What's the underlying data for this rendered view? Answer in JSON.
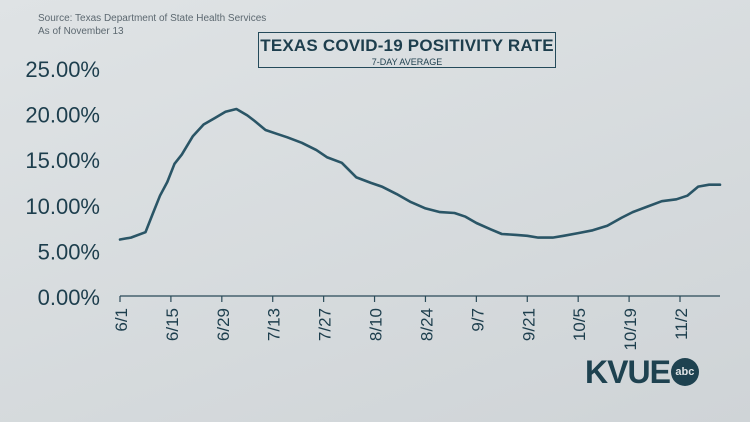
{
  "source": {
    "line1": "Source: Texas Department of State Health Services",
    "line2": "As of November 13"
  },
  "logo": {
    "text": "KVUE",
    "badge": "abc"
  },
  "colors": {
    "line": "#2a5566",
    "text": "#1d3e4d",
    "axis": "#2a4a58"
  },
  "chart_data": {
    "type": "line",
    "title": "TEXAS COVID-19 POSITIVITY RATE",
    "subtitle": "7-DAY AVERAGE",
    "xlabel": "",
    "ylabel": "",
    "ylim": [
      0,
      25
    ],
    "yticks": [
      0,
      5,
      10,
      15,
      20,
      25
    ],
    "ytick_labels": [
      "0.00%",
      "5.00%",
      "10.00%",
      "15.00%",
      "20.00%",
      "25.00%"
    ],
    "xlim": [
      "2020-06-01",
      "2020-11-13"
    ],
    "xtick_dates": [
      "2020-06-01",
      "2020-06-15",
      "2020-06-29",
      "2020-07-13",
      "2020-07-27",
      "2020-08-10",
      "2020-08-24",
      "2020-09-07",
      "2020-09-21",
      "2020-10-05",
      "2020-10-19",
      "2020-11-02"
    ],
    "xtick_labels": [
      "6/1",
      "6/15",
      "6/29",
      "7/13",
      "7/27",
      "8/10",
      "8/24",
      "9/7",
      "9/21",
      "10/5",
      "10/19",
      "11/2"
    ],
    "grid": false,
    "series": [
      {
        "x": [
          "2020-06-01",
          "2020-06-04",
          "2020-06-08",
          "2020-06-10",
          "2020-06-12",
          "2020-06-14",
          "2020-06-16",
          "2020-06-18",
          "2020-06-21",
          "2020-06-24",
          "2020-06-27",
          "2020-06-30",
          "2020-07-03",
          "2020-07-06",
          "2020-07-08",
          "2020-07-11",
          "2020-07-14",
          "2020-07-17",
          "2020-07-21",
          "2020-07-25",
          "2020-07-28",
          "2020-08-01",
          "2020-08-05",
          "2020-08-09",
          "2020-08-12",
          "2020-08-16",
          "2020-08-20",
          "2020-08-24",
          "2020-08-28",
          "2020-09-01",
          "2020-09-04",
          "2020-09-07",
          "2020-09-11",
          "2020-09-14",
          "2020-09-18",
          "2020-09-21",
          "2020-09-24",
          "2020-09-28",
          "2020-10-01",
          "2020-10-05",
          "2020-10-09",
          "2020-10-13",
          "2020-10-17",
          "2020-10-20",
          "2020-10-24",
          "2020-10-28",
          "2020-11-01",
          "2020-11-04",
          "2020-11-07",
          "2020-11-10",
          "2020-11-13"
        ],
        "y": [
          6.2,
          6.4,
          7.0,
          9.0,
          11.0,
          12.5,
          14.5,
          15.5,
          17.5,
          18.8,
          19.5,
          20.2,
          20.5,
          19.8,
          19.2,
          18.2,
          17.8,
          17.4,
          16.8,
          16.0,
          15.2,
          14.6,
          13.0,
          12.4,
          12.0,
          11.2,
          10.3,
          9.6,
          9.2,
          9.1,
          8.7,
          8.0,
          7.3,
          6.8,
          6.7,
          6.6,
          6.4,
          6.4,
          6.6,
          6.9,
          7.2,
          7.7,
          8.6,
          9.2,
          9.8,
          10.4,
          10.6,
          11.0,
          12.0,
          12.2,
          12.2
        ]
      }
    ]
  }
}
